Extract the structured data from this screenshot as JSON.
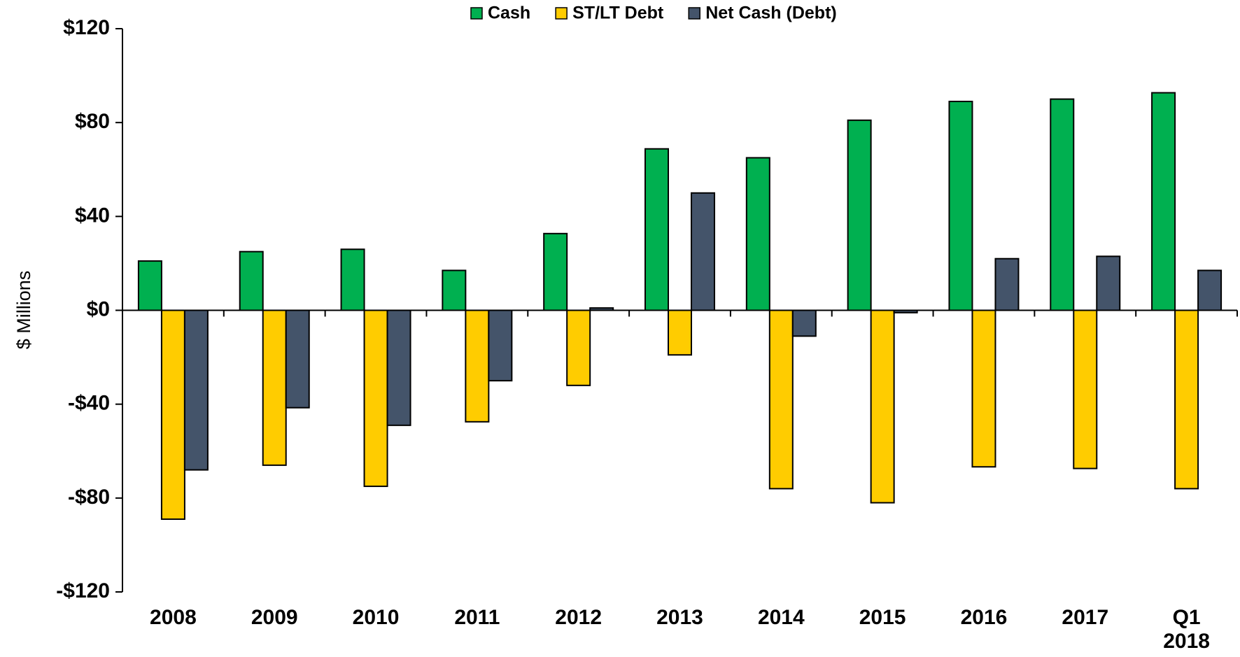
{
  "chart_data": {
    "type": "bar",
    "y_label": "$ Millions",
    "categories": [
      "2008",
      "2009",
      "2010",
      "2011",
      "2012",
      "2013",
      "2014",
      "2015",
      "2016",
      "2017",
      "Q1 2018"
    ],
    "series": [
      {
        "name": "Cash",
        "color": "#00b050",
        "values": [
          21,
          25,
          26,
          17,
          32.7,
          68.8,
          65,
          81,
          89,
          90,
          92.7
        ]
      },
      {
        "name": "ST/LT Debt",
        "color": "#ffcc00",
        "values": [
          -89,
          -66,
          -75,
          -47.5,
          -32,
          -19,
          -76,
          -82,
          -66.7,
          -67.4,
          -76
        ]
      },
      {
        "name": "Net Cash (Debt)",
        "color": "#44546a",
        "values": [
          -68,
          -41.5,
          -49,
          -30,
          1,
          50,
          -11,
          -1,
          22,
          23,
          17
        ]
      }
    ],
    "ylim": [
      -120,
      120
    ],
    "yticks": [
      {
        "value": -120,
        "label": "-$120"
      },
      {
        "value": -80,
        "label": "-$80"
      },
      {
        "value": -40,
        "label": "-$40"
      },
      {
        "value": 0,
        "label": "$0"
      },
      {
        "value": 40,
        "label": "$40"
      },
      {
        "value": 80,
        "label": "$80"
      },
      {
        "value": 120,
        "label": "$120"
      }
    ],
    "legend": "top"
  }
}
